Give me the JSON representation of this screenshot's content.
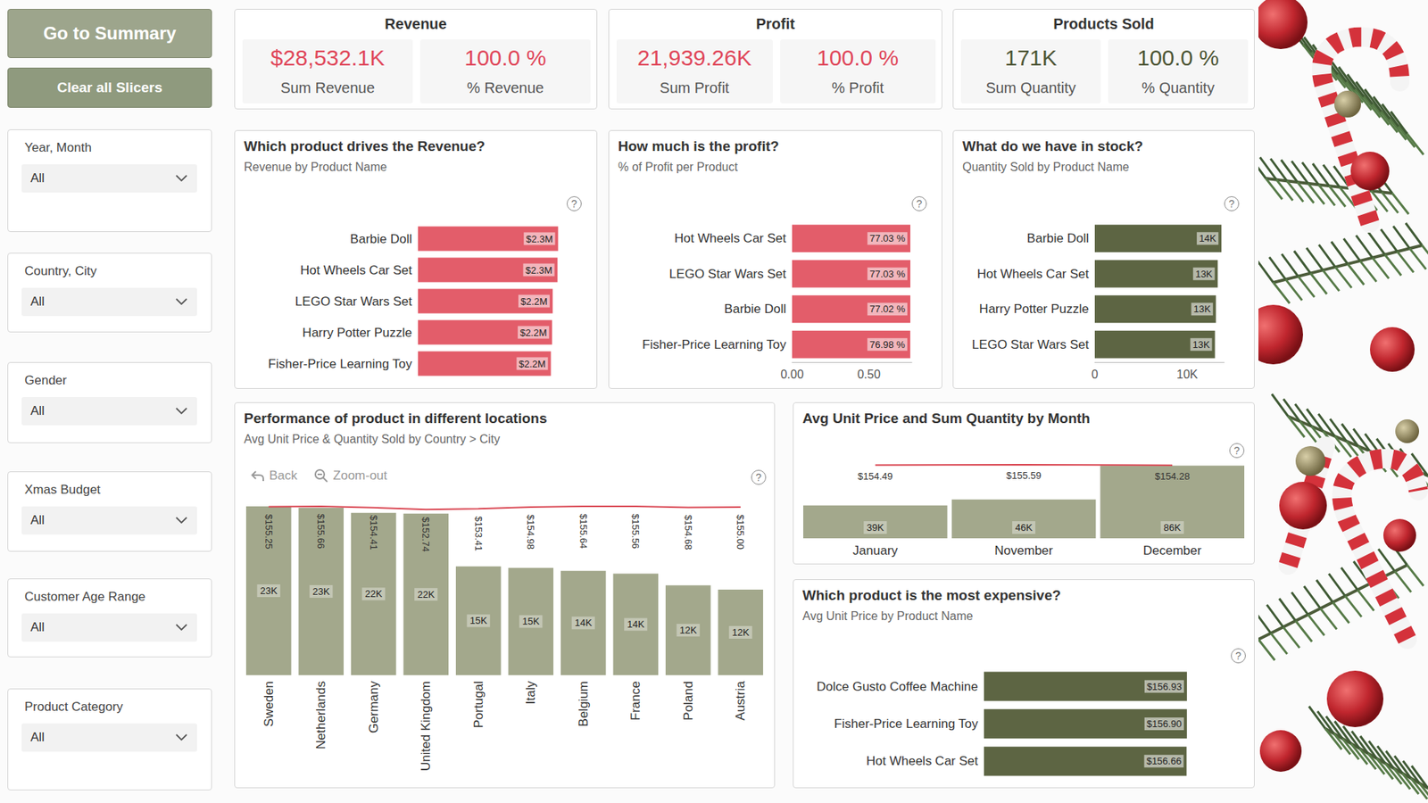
{
  "sidebar": {
    "buttons": [
      "Go to Summary",
      "Clear all Slicers"
    ],
    "slicers": [
      {
        "label": "Year, Month",
        "value": "All"
      },
      {
        "label": "Country, City",
        "value": "All"
      },
      {
        "label": "Gender",
        "value": "All"
      },
      {
        "label": "Xmas Budget",
        "value": "All"
      },
      {
        "label": "Customer Age Range",
        "value": "All"
      },
      {
        "label": "Product Category",
        "value": "All"
      }
    ]
  },
  "cards": [
    {
      "title": "Revenue",
      "color": "#e0475a",
      "items": [
        {
          "value": "$28,532.1K",
          "label": "Sum Revenue"
        },
        {
          "value": "100.0 %",
          "label": "% Revenue"
        }
      ]
    },
    {
      "title": "Profit",
      "color": "#e0475a",
      "items": [
        {
          "value": "21,939.26K",
          "label": "Sum Profit"
        },
        {
          "value": "100.0 %",
          "label": "% Profit"
        }
      ]
    },
    {
      "title": "Products Sold",
      "color": "#4d5535",
      "items": [
        {
          "value": "171K",
          "label": "Sum Quantity"
        },
        {
          "value": "100.0 %",
          "label": "% Quantity"
        }
      ]
    }
  ],
  "help_icon": "?",
  "chart_data": [
    {
      "type": "bar",
      "orientation": "horizontal",
      "title": "Which product drives the Revenue?",
      "subtitle": "Revenue by Product Name",
      "categories": [
        "Barbie Doll",
        "Hot Wheels Car Set",
        "LEGO Star Wars Set",
        "Harry Potter Puzzle",
        "Fisher-Price Learning Toy"
      ],
      "values": [
        2330000,
        2320000,
        2240000,
        2230000,
        2210000
      ],
      "value_labels": [
        "$2.3M",
        "$2.3M",
        "$2.2M",
        "$2.2M",
        "$2.2M"
      ],
      "color": "#e35d6a",
      "xlim": [
        0,
        2350000
      ],
      "data_labels": true,
      "tick_labels": "y",
      "grid": false
    },
    {
      "type": "bar",
      "orientation": "horizontal",
      "title": "How much is the profit?",
      "subtitle": "% of Profit per Product",
      "categories": [
        "Hot Wheels Car Set",
        "LEGO Star Wars Set",
        "Barbie Doll",
        "Fisher-Price Learning Toy"
      ],
      "values": [
        0.7703,
        0.7703,
        0.7702,
        0.7698
      ],
      "value_labels": [
        "77.03 %",
        "77.03 %",
        "77.02 %",
        "76.98 %"
      ],
      "color": "#e35d6a",
      "xlim": [
        0,
        0.78
      ],
      "xticks": [
        {
          "value": 0,
          "label": "0.00"
        },
        {
          "value": 0.5,
          "label": "0.50"
        }
      ],
      "data_labels": true,
      "grid": false
    },
    {
      "type": "bar",
      "orientation": "horizontal",
      "title": "What do we have in stock?",
      "subtitle": "Quantity Sold by Product Name",
      "categories": [
        "Barbie Doll",
        "Hot Wheels Car Set",
        "Harry Potter Puzzle",
        "LEGO Star Wars Set"
      ],
      "values": [
        13700,
        13300,
        13100,
        13000
      ],
      "value_labels": [
        "14K",
        "13K",
        "13K",
        "13K"
      ],
      "color": "#5d6543",
      "xlim": [
        0,
        14000
      ],
      "xticks": [
        0,
        {
          "value": 10000,
          "label": "10K"
        }
      ],
      "data_labels": true,
      "grid": false
    },
    {
      "type": "bar",
      "title": "Performance of product in different locations",
      "subtitle": "Avg Unit Price & Quantity Sold by Country > City",
      "annotations": [
        "Back",
        "Zoom-out"
      ],
      "categories": [
        "Sweden",
        "Netherlands",
        "Germany",
        "United Kingdom",
        "Portugal",
        "Italy",
        "Belgium",
        "France",
        "Poland",
        "Austria"
      ],
      "series": [
        {
          "type": "bar",
          "color": "#a3a88c",
          "values": [
            23300,
            23100,
            22400,
            22300,
            15000,
            14800,
            14400,
            14000,
            12400,
            11800
          ],
          "value_labels": [
            "23K",
            "23K",
            "22K",
            "22K",
            "15K",
            "15K",
            "14K",
            "14K",
            "12K",
            "12K"
          ]
        },
        {
          "type": "line",
          "axis": "y2",
          "color": "#d9434f",
          "values": [
            155.25,
            155.66,
            154.41,
            152.74,
            153.41,
            154.98,
            155.64,
            155.56,
            154.68,
            155.0
          ],
          "value_labels": [
            "$155.25",
            "$155.66",
            "$154.41",
            "$152.74",
            "$153.41",
            "$154.98",
            "$155.64",
            "$155.56",
            "$154.68",
            "$155.00"
          ]
        }
      ],
      "ylim": [
        0,
        23500
      ],
      "y2lim": [
        0,
        157
      ],
      "data_labels": true,
      "tick_labels": "x",
      "grid": false
    },
    {
      "type": "bar",
      "title": "Avg Unit Price and Sum Quantity by Month",
      "categories": [
        "January",
        "November",
        "December"
      ],
      "series": [
        {
          "type": "bar",
          "color": "#a3a88c",
          "values": [
            39000,
            46000,
            86000
          ],
          "value_labels": [
            "39K",
            "46K",
            "86K"
          ]
        },
        {
          "type": "line",
          "axis": "y2",
          "color": "#d9434f",
          "values": [
            154.49,
            155.59,
            154.28
          ],
          "value_labels": [
            "$154.49",
            "$155.59",
            "$154.28"
          ]
        }
      ],
      "ylim": [
        0,
        88000
      ],
      "y2lim": [
        0,
        157
      ],
      "data_labels": true,
      "tick_labels": "x",
      "grid": false
    },
    {
      "type": "bar",
      "orientation": "horizontal",
      "title": "Which product is the most expensive?",
      "subtitle": "Avg Unit Price by Product Name",
      "categories": [
        "Dolce Gusto Coffee Machine",
        "Fisher-Price Learning Toy",
        "Hot Wheels Car Set"
      ],
      "values": [
        156.93,
        156.9,
        156.66
      ],
      "value_labels": [
        "$156.93",
        "$156.90",
        "$156.66"
      ],
      "color": "#5d6543",
      "xlim": [
        0,
        157
      ],
      "data_labels": true,
      "tick_labels": "y",
      "grid": false
    }
  ]
}
